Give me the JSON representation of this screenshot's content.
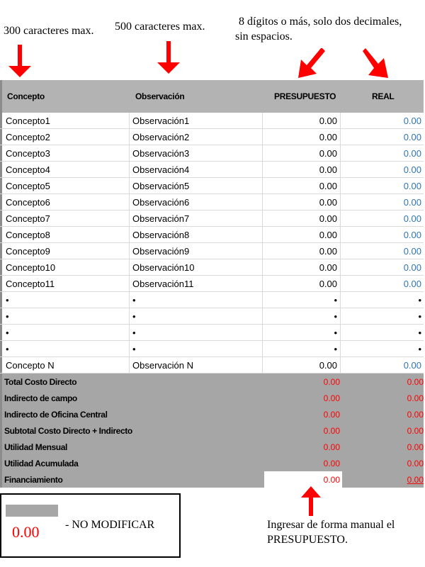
{
  "notes": {
    "concepto": "300 caracteres max.",
    "observacion": "500 caracteres max.",
    "digitos_line1": "8 dígitos o más, solo dos decimales,",
    "digitos_line2": "sin espacios.",
    "manual_line1": "Ingresar de forma manual el",
    "manual_line2": "PRESUPUESTO."
  },
  "arrow_color": "#ff0000",
  "header": {
    "concepto": "Concepto",
    "observacion": "Observación",
    "presupuesto": "PRESUPUESTO",
    "real": "REAL"
  },
  "rows": [
    {
      "concepto": "Concepto1",
      "observacion": "Observación1",
      "presupuesto": "0.00",
      "real": "0.00"
    },
    {
      "concepto": "Concepto2",
      "observacion": "Observación2",
      "presupuesto": "0.00",
      "real": "0.00"
    },
    {
      "concepto": "Concepto3",
      "observacion": "Observación3",
      "presupuesto": "0.00",
      "real": "0.00"
    },
    {
      "concepto": "Concepto4",
      "observacion": "Observación4",
      "presupuesto": "0.00",
      "real": "0.00"
    },
    {
      "concepto": "Concepto5",
      "observacion": "Observación5",
      "presupuesto": "0.00",
      "real": "0.00"
    },
    {
      "concepto": "Concepto6",
      "observacion": "Observación6",
      "presupuesto": "0.00",
      "real": "0.00"
    },
    {
      "concepto": "Concepto7",
      "observacion": "Observación7",
      "presupuesto": "0.00",
      "real": "0.00"
    },
    {
      "concepto": "Concepto8",
      "observacion": "Observación8",
      "presupuesto": "0.00",
      "real": "0.00"
    },
    {
      "concepto": "Concepto9",
      "observacion": "Observación9",
      "presupuesto": "0.00",
      "real": "0.00"
    },
    {
      "concepto": "Concepto10",
      "observacion": "Observación10",
      "presupuesto": "0.00",
      "real": "0.00"
    },
    {
      "concepto": "Concepto11",
      "observacion": "Observación11",
      "presupuesto": "0.00",
      "real": "0.00"
    },
    {
      "concepto": "•",
      "observacion": "•",
      "presupuesto": "•",
      "real": "•",
      "bullet": true
    },
    {
      "concepto": "•",
      "observacion": "•",
      "presupuesto": "•",
      "real": "•",
      "bullet": true
    },
    {
      "concepto": "•",
      "observacion": "•",
      "presupuesto": "•",
      "real": "•",
      "bullet": true
    },
    {
      "concepto": "•",
      "observacion": "•",
      "presupuesto": "•",
      "real": "•",
      "bullet": true
    },
    {
      "concepto": "Concepto N",
      "observacion": "Observación N",
      "presupuesto": "0.00",
      "real": "0.00"
    }
  ],
  "totals": [
    {
      "label": "Total Costo Directo",
      "presupuesto": "0.00",
      "real": "0.00"
    },
    {
      "label": "Indirecto de campo",
      "presupuesto": "0.00",
      "real": "0.00"
    },
    {
      "label": "Indirecto de Oficina Central",
      "presupuesto": "0.00",
      "real": "0.00"
    },
    {
      "label": "Subtotal Costo Directo + Indirecto",
      "presupuesto": "0.00",
      "real": "0.00"
    },
    {
      "label": "Utilidad Mensual",
      "presupuesto": "0.00",
      "real": "0.00"
    },
    {
      "label": "Utilidad Acumulada",
      "presupuesto": "0.00",
      "real": "0.00"
    },
    {
      "label": "Financiamiento",
      "presupuesto": "0.00",
      "real": "0.00",
      "editable": true
    }
  ],
  "legend": {
    "value": "0.00",
    "text": "- NO MODIFICAR"
  }
}
